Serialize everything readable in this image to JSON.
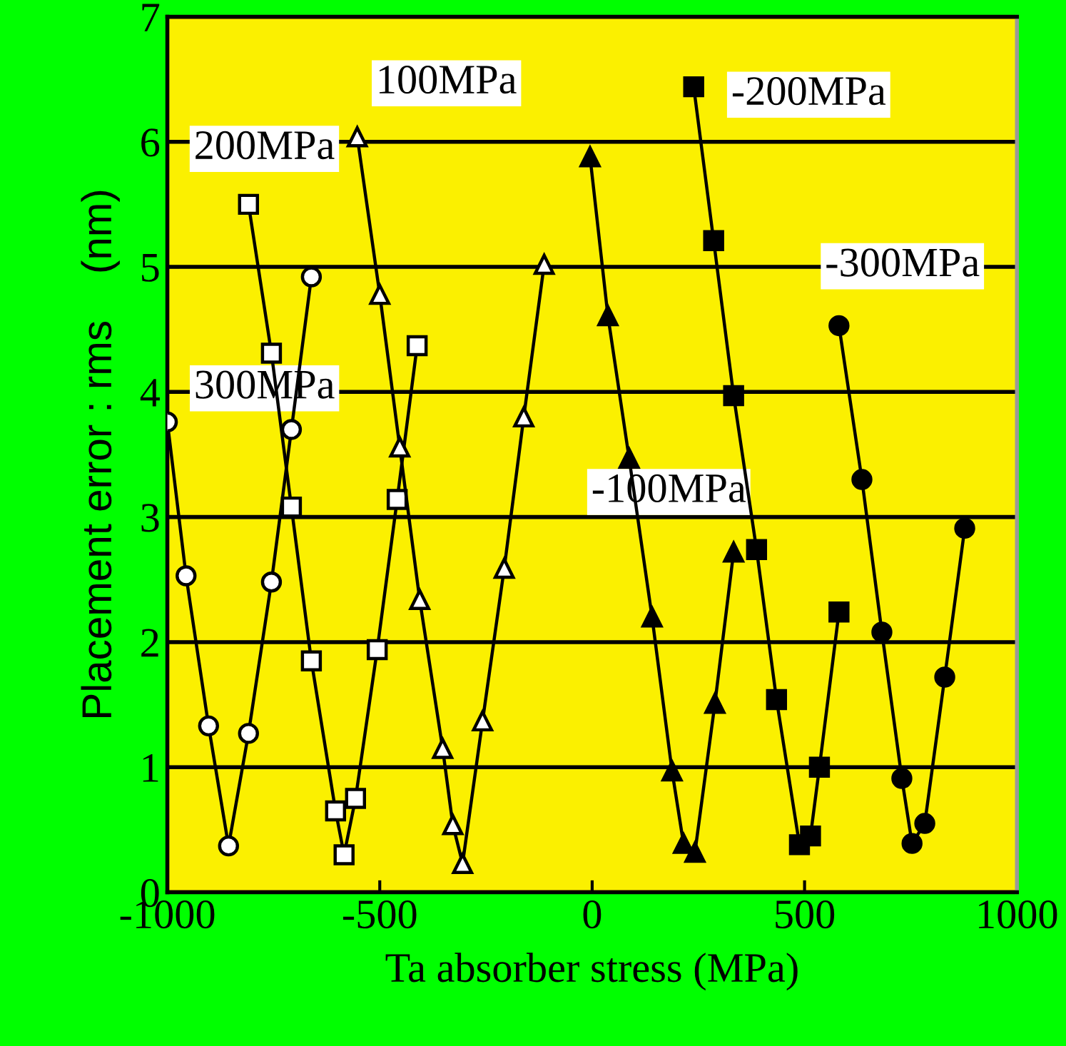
{
  "chart_data": {
    "type": "line",
    "xlabel": "Ta absorber stress (MPa)",
    "ylabel": "Placement error : rms    (nm)",
    "xlim": [
      -1000,
      1000
    ],
    "xticks": [
      -1000,
      -500,
      0,
      500,
      1000
    ],
    "ylim": [
      0,
      7
    ],
    "yticks": [
      0,
      1,
      2,
      3,
      4,
      5,
      6,
      7
    ],
    "grid": "y",
    "series": [
      {
        "name": "300MPa",
        "marker": "circle",
        "color": "#ffffff",
        "x": [
          -1000,
          -956,
          -903,
          -856,
          -809,
          -755,
          -708,
          -661
        ],
        "values": [
          3.76,
          2.53,
          1.33,
          0.37,
          1.27,
          2.48,
          3.7,
          4.92
        ]
      },
      {
        "name": "200MPa",
        "marker": "square",
        "color": "#ffffff",
        "x": [
          -809,
          -755,
          -708,
          -661,
          -604,
          -584,
          -557,
          -506,
          -459,
          -412
        ],
        "values": [
          5.5,
          4.31,
          3.08,
          1.85,
          0.65,
          0.3,
          0.75,
          1.94,
          3.14,
          4.37
        ]
      },
      {
        "name": "100MPa",
        "marker": "triangle",
        "color": "#ffffff",
        "x": [
          -553,
          -500,
          -453,
          -406,
          -352,
          -328,
          -305,
          -258,
          -207,
          -161,
          -113
        ],
        "values": [
          6.04,
          4.78,
          3.56,
          2.34,
          1.15,
          0.54,
          0.23,
          1.37,
          2.59,
          3.8,
          5.02
        ]
      },
      {
        "name": "-100MPa",
        "marker": "triangle",
        "color": "#000000",
        "x": [
          -5,
          37,
          87,
          141,
          188,
          215,
          242,
          289,
          333
        ],
        "values": [
          5.88,
          4.61,
          3.47,
          2.2,
          0.97,
          0.39,
          0.32,
          1.51,
          2.72
        ]
      },
      {
        "name": "-200MPa",
        "marker": "square",
        "color": "#000000",
        "x": [
          239,
          286,
          333,
          387,
          434,
          488,
          514,
          535,
          581
        ],
        "values": [
          6.44,
          5.21,
          3.97,
          2.74,
          1.54,
          0.38,
          0.45,
          1.0,
          2.24
        ]
      },
      {
        "name": "-300MPa",
        "marker": "circle",
        "color": "#000000",
        "x": [
          581,
          635,
          682,
          729,
          753,
          783,
          830,
          877
        ],
        "values": [
          4.53,
          3.3,
          2.08,
          0.91,
          0.39,
          0.55,
          1.72,
          2.91
        ]
      }
    ]
  }
}
